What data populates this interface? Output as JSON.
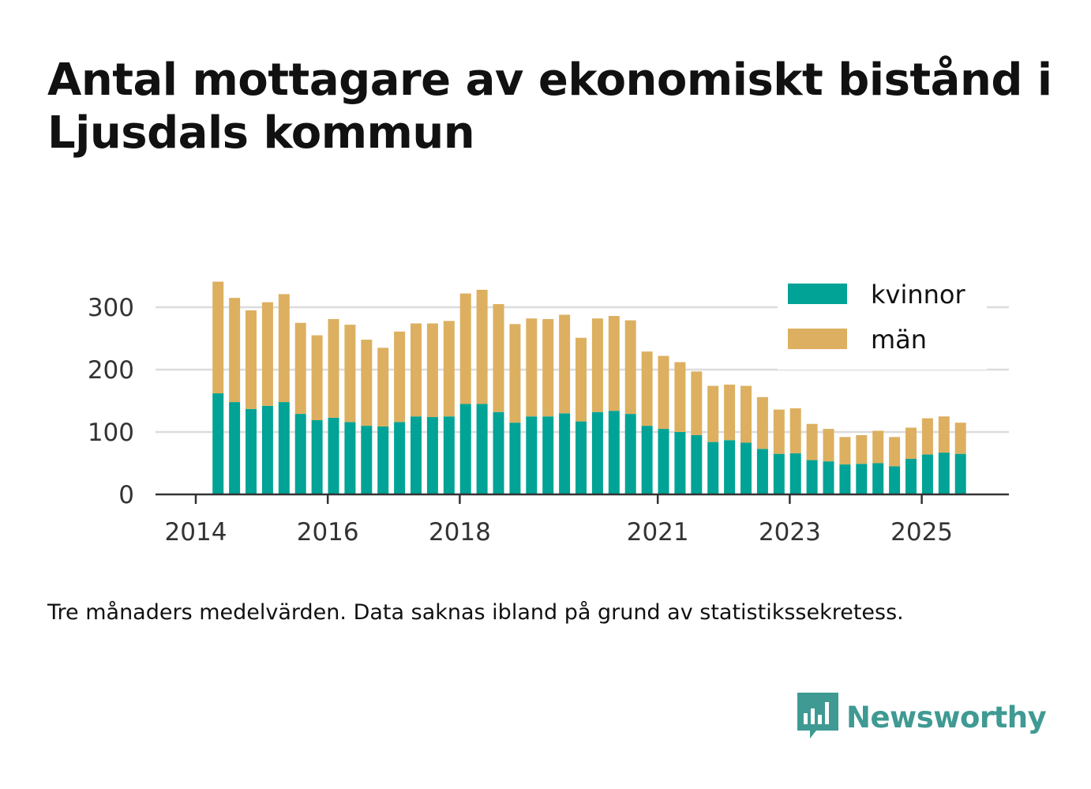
{
  "title": "Antal mottagare av ekonomiskt bistånd i Ljusdals kommun",
  "note": "Tre månaders medelvärden. Data saknas ibland på grund av statistikssekretess.",
  "brand": {
    "name": "Newsworthy",
    "color": "#3f9a93"
  },
  "chart_data": {
    "type": "bar",
    "stacked": true,
    "ylim": [
      0,
      350
    ],
    "yticks": [
      0,
      100,
      200,
      300
    ],
    "xticks": [
      {
        "label": "2014",
        "pos": 0
      },
      {
        "label": "2016",
        "pos": 8
      },
      {
        "label": "2018",
        "pos": 16
      },
      {
        "label": "2021",
        "pos": 28
      },
      {
        "label": "2023",
        "pos": 36
      },
      {
        "label": "2025",
        "pos": 44
      }
    ],
    "bar_start_pos": 1.35,
    "legend": {
      "placement": "top-right"
    },
    "grid": true,
    "series": [
      {
        "name": "kvinnor",
        "color": "#00a396",
        "values": [
          162,
          148,
          137,
          142,
          148,
          129,
          119,
          123,
          116,
          110,
          109,
          116,
          125,
          124,
          125,
          145,
          145,
          132,
          115,
          125,
          125,
          130,
          117,
          132,
          134,
          129,
          110,
          105,
          100,
          95,
          84,
          87,
          83,
          73,
          65,
          66,
          55,
          53,
          48,
          49,
          50,
          45,
          57,
          64,
          67,
          65
        ]
      },
      {
        "name": "män",
        "color": "#dcb060",
        "values": [
          179,
          167,
          158,
          166,
          173,
          146,
          136,
          158,
          156,
          138,
          126,
          145,
          149,
          150,
          153,
          177,
          183,
          173,
          158,
          157,
          156,
          158,
          134,
          150,
          152,
          150,
          119,
          117,
          112,
          102,
          90,
          89,
          91,
          83,
          71,
          72,
          58,
          52,
          44,
          46,
          52,
          47,
          50,
          58,
          58,
          50
        ]
      }
    ]
  }
}
